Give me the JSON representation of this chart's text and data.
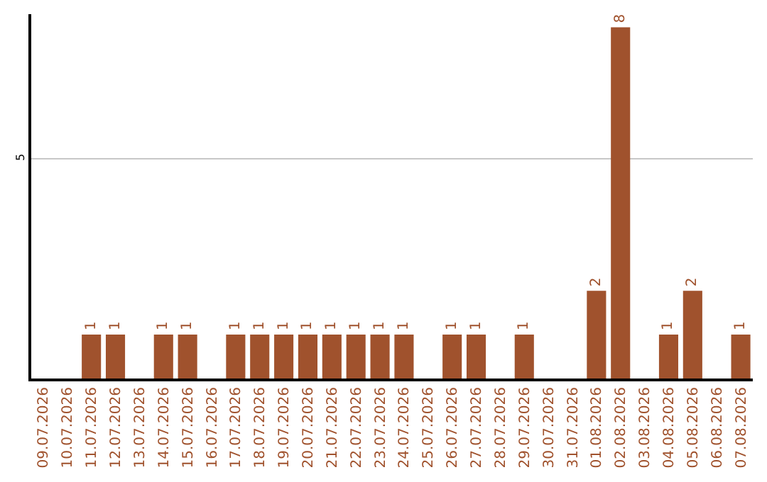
{
  "chart_data": {
    "type": "bar",
    "categories": [
      "09.07.2026",
      "10.07.2026",
      "11.07.2026",
      "12.07.2026",
      "13.07.2026",
      "14.07.2026",
      "15.07.2026",
      "16.07.2026",
      "17.07.2026",
      "18.07.2026",
      "19.07.2026",
      "20.07.2026",
      "21.07.2026",
      "22.07.2026",
      "23.07.2026",
      "24.07.2026",
      "25.07.2026",
      "26.07.2026",
      "27.07.2026",
      "28.07.2026",
      "29.07.2026",
      "30.07.2026",
      "31.07.2026",
      "01.08.2026",
      "02.08.2026",
      "03.08.2026",
      "04.08.2026",
      "05.08.2026",
      "06.08.2026",
      "07.08.2026"
    ],
    "values": [
      0,
      0,
      1,
      1,
      0,
      1,
      1,
      0,
      1,
      1,
      1,
      1,
      1,
      1,
      1,
      1,
      0,
      1,
      1,
      0,
      1,
      0,
      0,
      2,
      8,
      0,
      1,
      2,
      0,
      1
    ],
    "value_labels": [
      null,
      null,
      "1",
      "1",
      null,
      "1",
      "1",
      null,
      "1",
      "1",
      "1",
      "1",
      "1",
      "1",
      "1",
      "1",
      null,
      "1",
      "1",
      null,
      "1",
      null,
      null,
      "2",
      "8",
      null,
      "1",
      "2",
      null,
      "1"
    ],
    "color": "#a0522d",
    "ylim": [
      0,
      8.3
    ],
    "yticks": [
      5
    ],
    "grid": "y"
  }
}
